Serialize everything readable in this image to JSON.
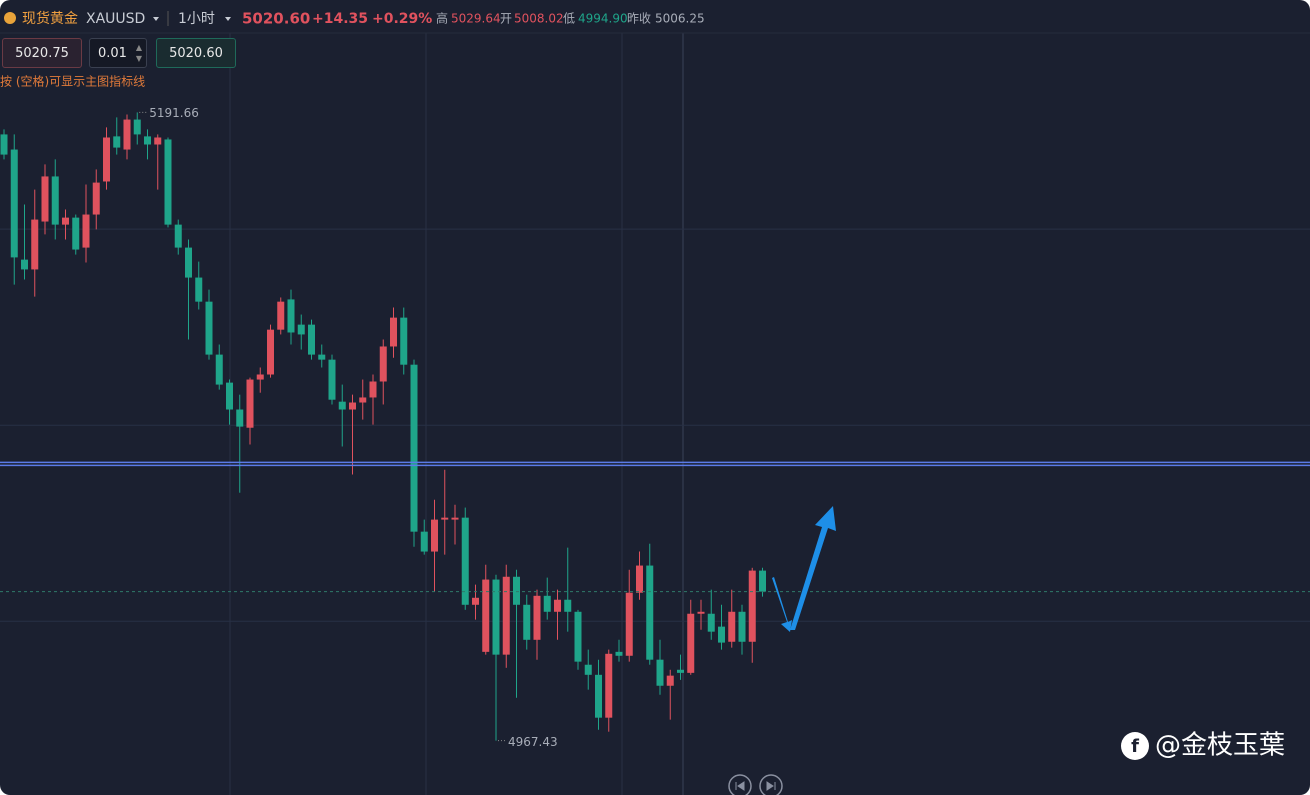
{
  "header": {
    "name": "现货黄金",
    "symbol": "XAUUSD",
    "period": "1小时",
    "price": "5020.60",
    "change": "+14.35",
    "change_pct": "+0.29%",
    "high_label": "高",
    "high": "5029.64",
    "open_label": "开",
    "open": "5008.02",
    "low_label": "低",
    "low": "4994.90",
    "prev_close_label": "昨收",
    "prev_close": "5006.25"
  },
  "toolbar": {
    "ask": "5020.75",
    "lot": "0.01",
    "bid": "5020.60"
  },
  "hint": "按 (空格)可显示主图指标线",
  "watermark": "@金枝玉葉",
  "chart_data": {
    "type": "candlestick",
    "up_color": "#e0525e",
    "down_color": "#1fa58a",
    "ylim": [
      4948,
      5220
    ],
    "grid": true,
    "grid_levels": [
      5010,
      5080,
      5150
    ],
    "hline": 5066,
    "hline_color": "#5b7be8",
    "open": [
      5183.8,
      5178.4,
      5139.1,
      5135.6,
      5152.7,
      5168.8,
      5151.6,
      5154.1,
      5143.4,
      5155.2,
      5167.0,
      5183.1,
      5178.4,
      5189.1,
      5183.1,
      5180.2,
      5182.0,
      5151.6,
      5143.4,
      5132.7,
      5124.1,
      5105.2,
      5095.2,
      5085.6,
      5079.1,
      5096.3,
      5098.1,
      5114.1,
      5124.9,
      5115.9,
      5115.9,
      5105.2,
      5103.4,
      5088.4,
      5085.6,
      5088.1,
      5089.9,
      5095.6,
      5108.1,
      5118.4,
      5101.6,
      5042.0,
      5034.9,
      5046.3,
      5046.3,
      5047.0,
      5015.9,
      4999.1,
      5024.9,
      4998.1,
      5025.9,
      5015.9,
      5003.4,
      5019.1,
      5013.4,
      5017.7,
      5013.4,
      4994.5,
      4990.9,
      4975.6,
      4999.1,
      4997.7,
      5020.2,
      5029.9,
      4996.3,
      4987.0,
      4992.7,
      4991.6,
      5012.7,
      5012.7,
      5008.1,
      5002.7,
      5013.4,
      5002.7,
      5028.1
    ],
    "high": [
      5185.6,
      5183.8,
      5158.8,
      5164.1,
      5173.1,
      5174.9,
      5157.0,
      5155.2,
      5165.9,
      5171.3,
      5186.3,
      5189.9,
      5190.9,
      5191.66,
      5185.6,
      5183.8,
      5182.7,
      5153.4,
      5146.3,
      5138.4,
      5128.4,
      5108.8,
      5096.3,
      5090.9,
      5097.0,
      5100.6,
      5115.9,
      5125.6,
      5128.4,
      5119.5,
      5117.7,
      5108.8,
      5105.2,
      5094.5,
      5090.9,
      5096.3,
      5098.1,
      5110.6,
      5122.0,
      5122.0,
      5103.4,
      5046.3,
      5053.4,
      5064.1,
      5051.6,
      5050.6,
      5023.1,
      5030.2,
      5026.6,
      5030.2,
      5028.4,
      5019.5,
      5021.3,
      5025.6,
      5021.3,
      5036.3,
      5014.1,
      4999.9,
      4996.3,
      4999.9,
      5003.4,
      5028.4,
      5034.9,
      5037.7,
      5003.4,
      4992.7,
      4998.1,
      5017.7,
      5017.7,
      5021.3,
      5015.9,
      5021.3,
      5015.9,
      5029.1,
      5029.1
    ],
    "low": [
      5174.9,
      5130.2,
      5132.0,
      5125.9,
      5148.1,
      5146.3,
      5146.3,
      5140.9,
      5138.1,
      5149.9,
      5164.1,
      5176.6,
      5174.9,
      5180.2,
      5174.9,
      5164.1,
      5150.6,
      5140.9,
      5110.6,
      5121.3,
      5103.4,
      5092.7,
      5080.2,
      5055.9,
      5073.1,
      5091.6,
      5097.0,
      5112.4,
      5108.8,
      5107.0,
      5103.4,
      5100.6,
      5087.4,
      5072.4,
      5062.4,
      5082.0,
      5080.2,
      5087.4,
      5104.1,
      5098.1,
      5036.6,
      5033.8,
      5020.6,
      5033.8,
      5037.4,
      5014.1,
      5010.6,
      4998.1,
      4967.43,
      4993.4,
      4982.7,
      4999.9,
      4996.3,
      5010.6,
      5003.4,
      5006.3,
      4992.7,
      4985.6,
      4971.3,
      4970.6,
      4995.6,
      4995.6,
      5017.7,
      4994.5,
      4983.8,
      4974.9,
      4989.1,
      4990.9,
      5007.0,
      5003.4,
      4999.9,
      5000.6,
      4998.1,
      4995.2,
      5018.8
    ],
    "close": [
      5176.6,
      5139.9,
      5135.6,
      5153.4,
      5168.8,
      5151.6,
      5154.1,
      5142.7,
      5155.2,
      5166.6,
      5182.7,
      5179.1,
      5189.1,
      5183.8,
      5180.2,
      5182.7,
      5151.6,
      5143.4,
      5132.7,
      5124.1,
      5105.2,
      5094.5,
      5085.6,
      5079.5,
      5096.3,
      5098.1,
      5114.1,
      5124.1,
      5113.1,
      5112.4,
      5105.2,
      5103.4,
      5089.1,
      5085.6,
      5088.1,
      5089.9,
      5095.6,
      5108.1,
      5118.4,
      5101.6,
      5042.0,
      5034.9,
      5046.3,
      5047.0,
      5047.0,
      5015.9,
      5018.4,
      5024.9,
      4998.1,
      5025.9,
      5015.9,
      5003.4,
      5019.1,
      5013.4,
      5017.7,
      5013.4,
      4995.6,
      4990.9,
      4975.6,
      4998.4,
      4997.7,
      5020.2,
      5029.9,
      4996.3,
      4987.0,
      4990.6,
      4991.6,
      5012.7,
      5013.4,
      5006.3,
      5002.4,
      5013.4,
      5002.7,
      5028.1,
      5020.6
    ]
  }
}
